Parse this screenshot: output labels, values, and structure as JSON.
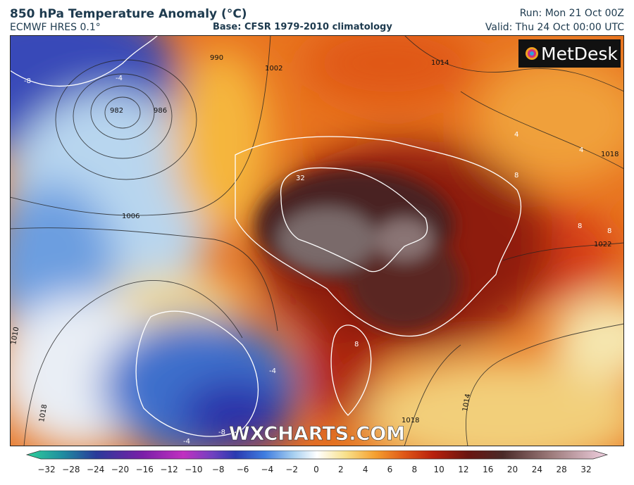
{
  "header": {
    "title": "850 hPa Temperature Anomaly (°C)",
    "model": "ECMWF HRES 0.1°",
    "base": "Base: CFSR 1979-2010 climatology",
    "run": "Run: Mon 21 Oct 00Z",
    "valid": "Valid: Thu 24 Oct 00:00 UTC"
  },
  "map": {
    "logo": "MetDesk",
    "watermark": "WXCHARTS.COM",
    "isobar_labels": [
      "990",
      "982",
      "986",
      "1002",
      "1006",
      "1014",
      "1018",
      "1022",
      "1010",
      "1018",
      "1014",
      "1018"
    ],
    "anomaly_labels": [
      "-8",
      "-4",
      "32",
      "8",
      "8",
      "8",
      "8",
      "-4",
      "-8",
      "-4",
      "4",
      "4"
    ]
  },
  "colorbar": {
    "labels": [
      "−32",
      "−28",
      "−24",
      "−20",
      "−16",
      "−12",
      "−10",
      "−8",
      "−6",
      "−4",
      "−2",
      "0",
      "2",
      "4",
      "6",
      "8",
      "10",
      "12",
      "16",
      "20",
      "24",
      "28",
      "32"
    ]
  }
}
